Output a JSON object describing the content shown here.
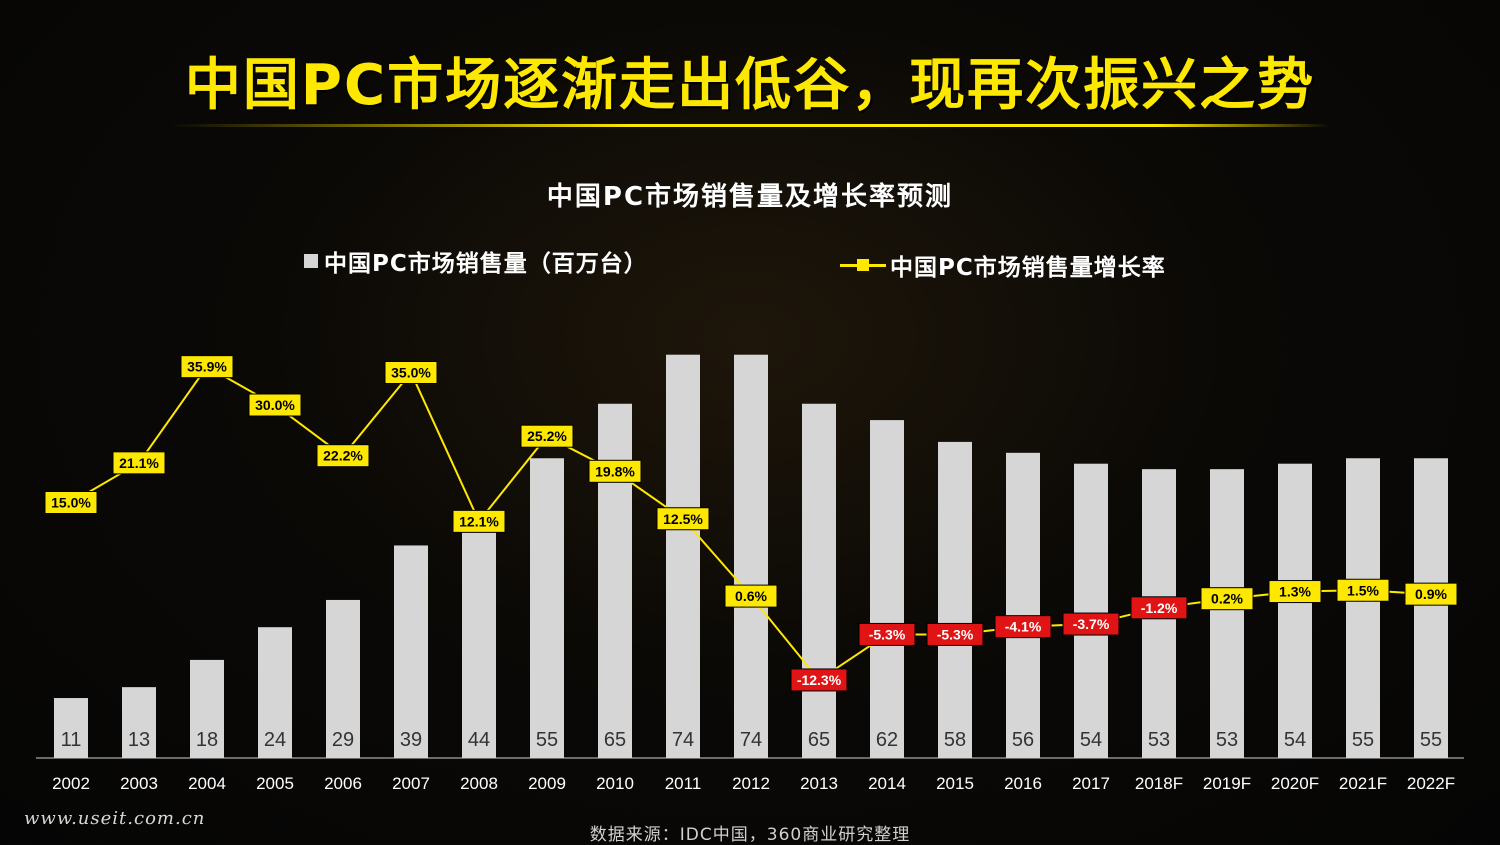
{
  "header": {
    "title": "中国PC市场逐渐走出低谷，现再次振兴之势"
  },
  "footer": {
    "url": "www.useit.com.cn",
    "source": "数据来源：IDC中国，360商业研究整理"
  },
  "colors": {
    "title": "#ffe800",
    "bar": "#d6d6d6",
    "line": "#ffe800",
    "negative_label": "#e01414",
    "positive_label": "#ffe800"
  },
  "chart_data": {
    "type": "bar",
    "title": "中国PC市场销售量及增长率预测",
    "categories": [
      "2002",
      "2003",
      "2004",
      "2005",
      "2006",
      "2007",
      "2008",
      "2009",
      "2010",
      "2011",
      "2012",
      "2013",
      "2014",
      "2015",
      "2016",
      "2017",
      "2018F",
      "2019F",
      "2020F",
      "2021F",
      "2022F"
    ],
    "series": [
      {
        "name": "中国PC市场销售量（百万台）",
        "type": "bar",
        "values": [
          11,
          13,
          18,
          24,
          29,
          39,
          44,
          55,
          65,
          74,
          74,
          65,
          62,
          58,
          56,
          54,
          53,
          53,
          54,
          55,
          55
        ]
      },
      {
        "name": "中国PC市场销售量增长率",
        "type": "line",
        "values": [
          15.0,
          21.1,
          35.9,
          30.0,
          22.2,
          35.0,
          12.1,
          25.2,
          19.8,
          12.5,
          0.6,
          -12.3,
          -5.3,
          -5.3,
          -4.1,
          -3.7,
          -1.2,
          0.2,
          1.3,
          1.5,
          0.9
        ],
        "labels": [
          "15.0%",
          "21.1%",
          "35.9%",
          "30.0%",
          "22.2%",
          "35.0%",
          "12.1%",
          "25.2%",
          "19.8%",
          "12.5%",
          "0.6%",
          "-12.3%",
          "-5.3%",
          "-5.3%",
          "-4.1%",
          "-3.7%",
          "-1.2%",
          "0.2%",
          "1.3%",
          "1.5%",
          "0.9%"
        ]
      }
    ],
    "legend": "top",
    "grid": false
  }
}
